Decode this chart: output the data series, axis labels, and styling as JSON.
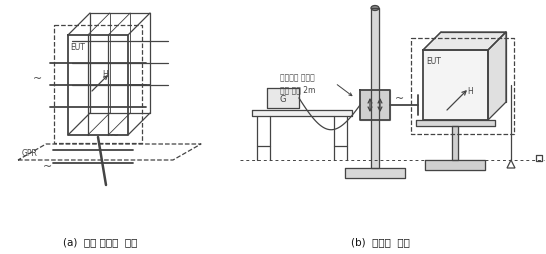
{
  "bg_color": "#ffffff",
  "label_a": "(a)  바닥 거치형  기기",
  "label_b": "(b)  탁상형  기기",
  "annotation_line1": "트위스트 케이블",
  "annotation_line2": "최대 길이 2m",
  "label_EUT": "EUT",
  "label_GPR": "GPR",
  "label_H": "H",
  "label_G": "G",
  "fig_width": 5.46,
  "fig_height": 2.54,
  "dpi": 100,
  "line_color": "#444444",
  "light_gray": "#aaaaaa"
}
